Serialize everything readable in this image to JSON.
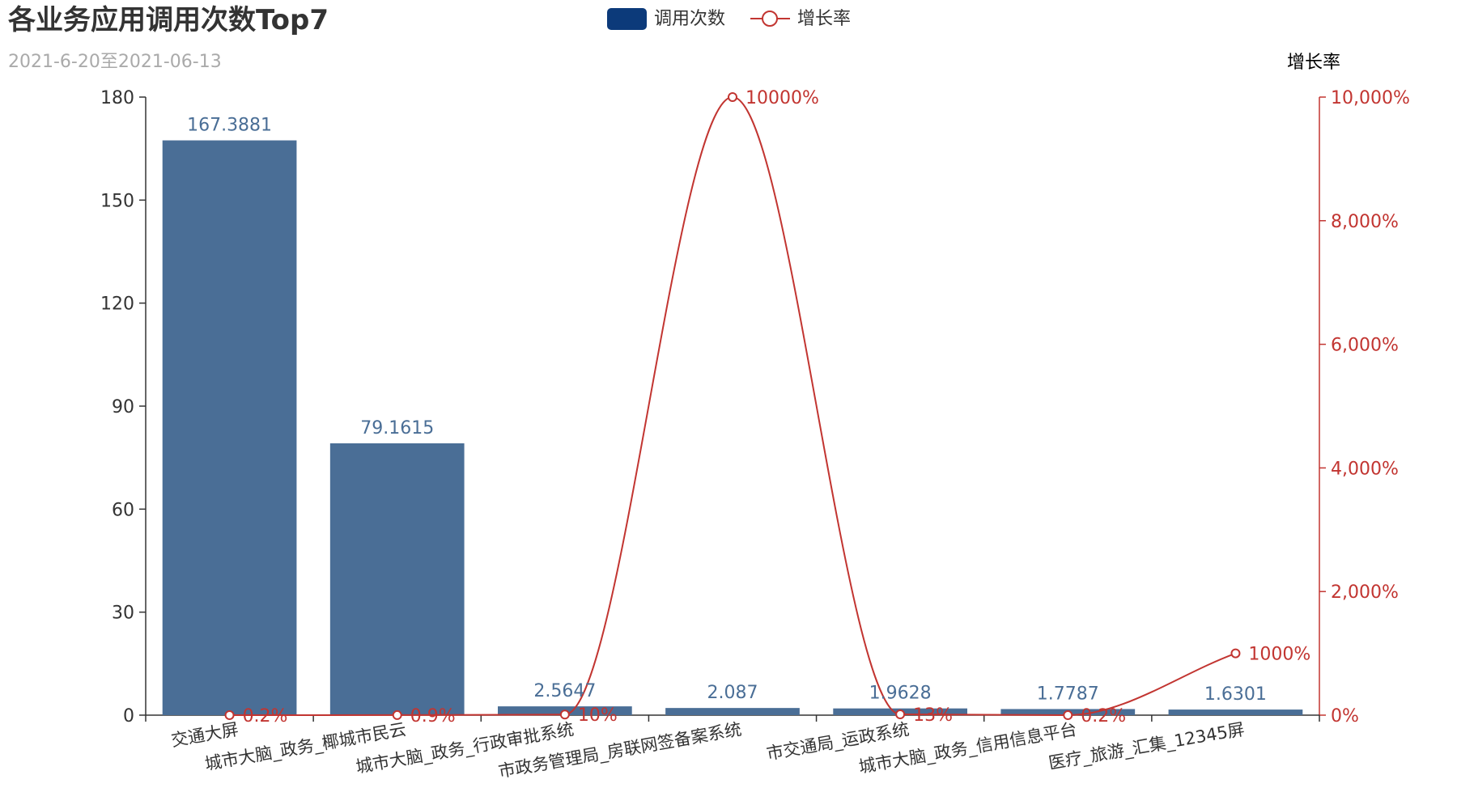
{
  "chart_data": {
    "type": "bar",
    "title": "各业务应用调用次数Top7",
    "subtitle": "2021-6-20至2021-06-13",
    "categories": [
      "交通大屏",
      "城市大脑_政务_椰城市民云",
      "城市大脑_政务_行政审批系统",
      "市政务管理局_房联网签备案系统",
      "市交通局_运政系统",
      "城市大脑_政务_信用信息平台",
      "医疗_旅游_汇集_12345屏"
    ],
    "series": [
      {
        "name": "调用次数",
        "type": "bar",
        "axis": "left",
        "values": [
          167.3881,
          79.1615,
          2.5647,
          2.087,
          1.9628,
          1.7787,
          1.6301
        ],
        "labels": [
          "167.3881",
          "79.1615",
          "2.5647",
          "2.087",
          "1.9628",
          "1.7787",
          "1.6301"
        ]
      },
      {
        "name": "增长率",
        "type": "line",
        "axis": "right",
        "smooth": true,
        "values": [
          0.2,
          0.9,
          10,
          10000,
          13,
          0.2,
          1000
        ],
        "labels": [
          "0.2%",
          "0.9%",
          "10%",
          "10000%",
          "13%",
          "0.2%",
          "1000%"
        ]
      }
    ],
    "y_left": {
      "min": 0,
      "max": 180,
      "ticks": [
        "0",
        "30",
        "60",
        "90",
        "120",
        "150",
        "180"
      ]
    },
    "y_right": {
      "name": "增长率",
      "min": 0,
      "max": 10000,
      "ticks": [
        "0%",
        "2,000%",
        "4,000%",
        "6,000%",
        "8,000%",
        "10,000%"
      ]
    },
    "legend_position": "top-center",
    "grid": false,
    "colors": {
      "bar": "#4a6e96",
      "line": "#c23531",
      "legend_bar": "#0c3a7a",
      "axis": "#333333",
      "subtitle": "#aaaaaa"
    }
  }
}
